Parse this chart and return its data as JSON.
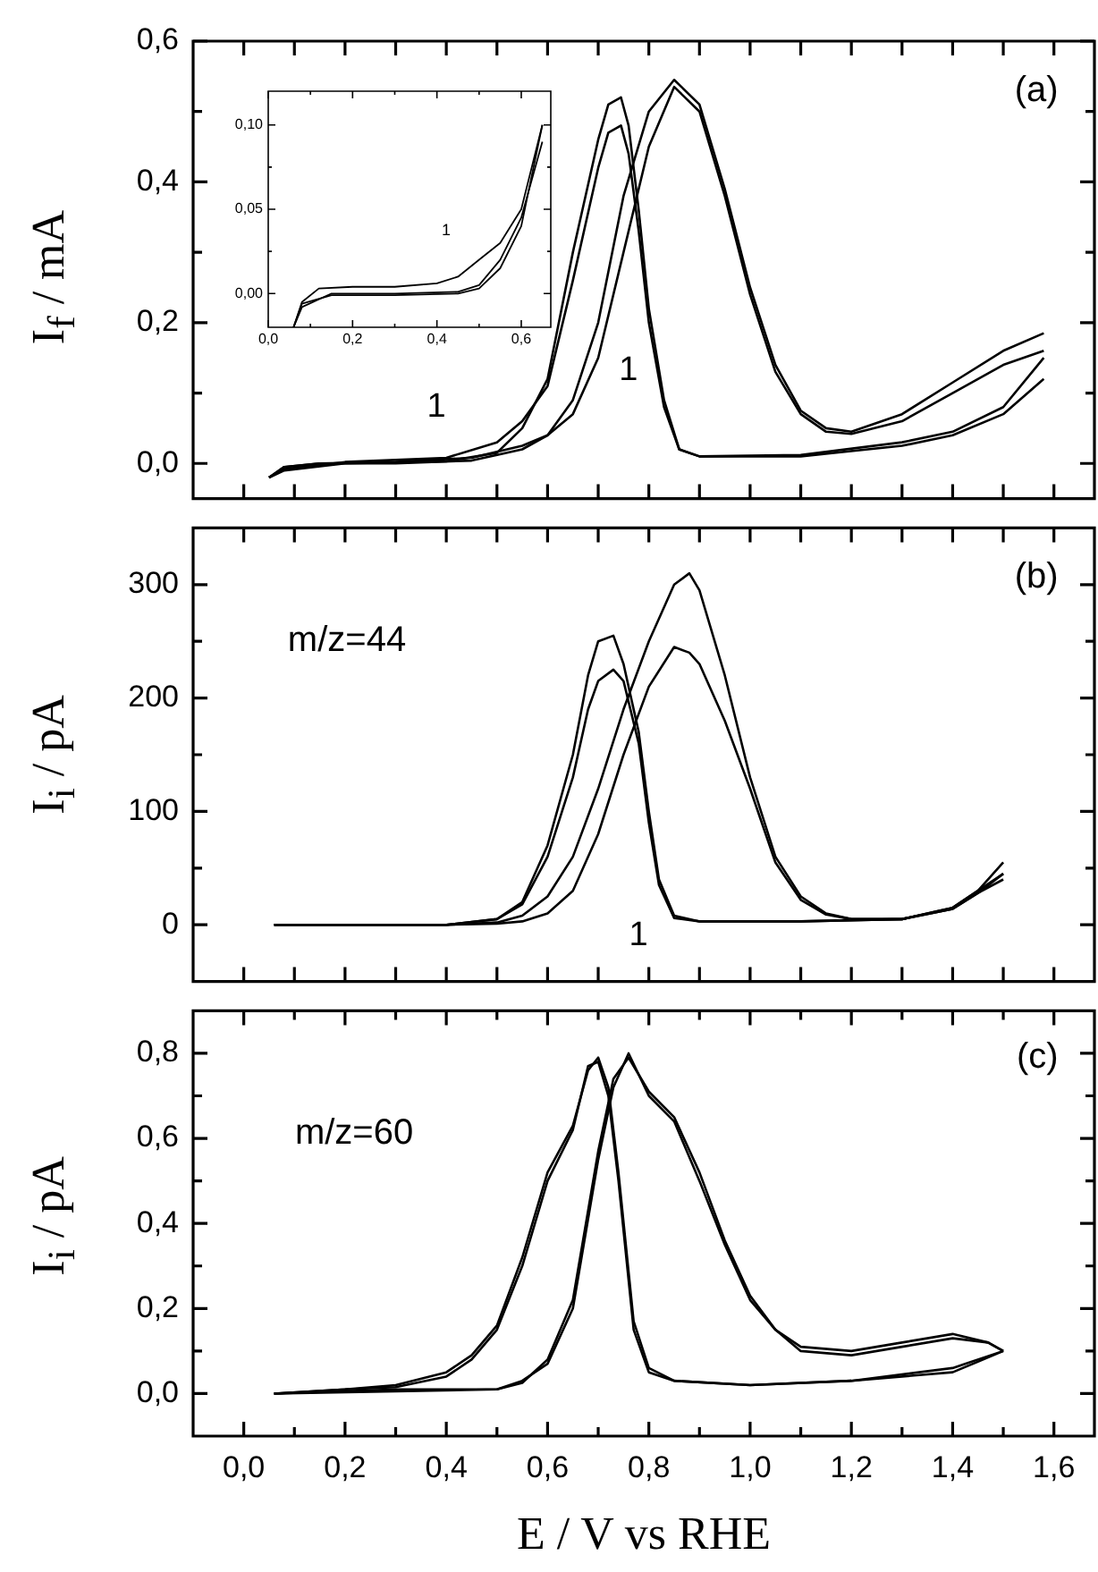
{
  "chart_data": [
    {
      "type": "line",
      "ylabel": "I$_{f}$ / mA",
      "xlim": [
        -0.1,
        1.68
      ],
      "ylim": [
        -0.05,
        0.6
      ],
      "tick_labels": "y",
      "xticks": [
        {
          "value": 0,
          "label": null
        },
        {
          "value": 0.1,
          "label": null
        },
        {
          "value": 0.2,
          "label": null
        },
        {
          "value": 0.3,
          "label": null
        },
        {
          "value": 0.4,
          "label": null
        },
        {
          "value": 0.5,
          "label": null
        },
        {
          "value": 0.6,
          "label": null
        },
        {
          "value": 0.7,
          "label": null
        },
        {
          "value": 0.8,
          "label": null
        },
        {
          "value": 0.9,
          "label": null
        },
        {
          "value": 1.0,
          "label": null
        },
        {
          "value": 1.1,
          "label": null
        },
        {
          "value": 1.2,
          "label": null
        },
        {
          "value": 1.3,
          "label": null
        },
        {
          "value": 1.4,
          "label": null
        },
        {
          "value": 1.5,
          "label": null
        },
        {
          "value": 1.6,
          "label": null
        }
      ],
      "yticks": [
        {
          "value": 0,
          "label": "0,0"
        },
        {
          "value": 0.1,
          "label": null
        },
        {
          "value": 0.2,
          "label": "0,2"
        },
        {
          "value": 0.3,
          "label": null
        },
        {
          "value": 0.4,
          "label": "0,4"
        },
        {
          "value": 0.5,
          "label": null
        },
        {
          "value": 0.6,
          "label": "0,6"
        }
      ],
      "series": [
        {
          "color": "#000000",
          "x": [
            0.05,
            0.08,
            0.15,
            0.3,
            0.45,
            0.55,
            0.6,
            0.65,
            0.7,
            0.75,
            0.8,
            0.85,
            0.9,
            0.95,
            1.0,
            1.05,
            1.1,
            1.15,
            1.2,
            1.3,
            1.4,
            1.5,
            1.58
          ],
          "values": [
            -0.02,
            -0.005,
            0.0,
            0.002,
            0.008,
            0.025,
            0.04,
            0.07,
            0.15,
            0.3,
            0.45,
            0.535,
            0.5,
            0.38,
            0.24,
            0.13,
            0.07,
            0.045,
            0.042,
            0.06,
            0.1,
            0.14,
            0.16
          ]
        },
        {
          "color": "#000000",
          "x": [
            0.05,
            0.08,
            0.2,
            0.4,
            0.5,
            0.55,
            0.6,
            0.65,
            0.7,
            0.72,
            0.745,
            0.76,
            0.78,
            0.8,
            0.83,
            0.86,
            0.9,
            1.1,
            1.3,
            1.4,
            1.5,
            1.58
          ],
          "values": [
            -0.02,
            -0.008,
            0.002,
            0.008,
            0.03,
            0.06,
            0.11,
            0.26,
            0.42,
            0.47,
            0.48,
            0.44,
            0.33,
            0.2,
            0.08,
            0.02,
            0.01,
            0.01,
            0.025,
            0.04,
            0.07,
            0.12
          ]
        },
        {
          "color": "#000000",
          "x": [
            0.05,
            0.08,
            0.15,
            0.3,
            0.45,
            0.55,
            0.6,
            0.65,
            0.7,
            0.75,
            0.8,
            0.85,
            0.9,
            0.95,
            1.0,
            1.05,
            1.1,
            1.15,
            1.2,
            1.3,
            1.4,
            1.5,
            1.58
          ],
          "values": [
            -0.02,
            -0.005,
            0.0,
            0.0,
            0.004,
            0.02,
            0.04,
            0.09,
            0.2,
            0.38,
            0.5,
            0.545,
            0.51,
            0.39,
            0.25,
            0.14,
            0.075,
            0.05,
            0.045,
            0.07,
            0.115,
            0.16,
            0.185
          ]
        },
        {
          "color": "#000000",
          "x": [
            0.05,
            0.08,
            0.2,
            0.4,
            0.5,
            0.55,
            0.6,
            0.65,
            0.7,
            0.72,
            0.745,
            0.76,
            0.78,
            0.8,
            0.83,
            0.86,
            0.9,
            1.1,
            1.3,
            1.4,
            1.5,
            1.58
          ],
          "values": [
            -0.02,
            -0.01,
            0.0,
            0.003,
            0.015,
            0.05,
            0.12,
            0.3,
            0.46,
            0.51,
            0.52,
            0.48,
            0.36,
            0.22,
            0.09,
            0.02,
            0.01,
            0.012,
            0.03,
            0.045,
            0.08,
            0.15
          ]
        }
      ],
      "annotations": [
        "(a)",
        "1",
        "1"
      ]
    },
    {
      "type": "line",
      "xlim": [
        0,
        0.67
      ],
      "ylim": [
        -0.02,
        0.12
      ],
      "xticks": [
        {
          "value": 0,
          "label": "0,0"
        },
        {
          "value": 0.1,
          "label": null
        },
        {
          "value": 0.2,
          "label": "0,2"
        },
        {
          "value": 0.3,
          "label": null
        },
        {
          "value": 0.4,
          "label": "0,4"
        },
        {
          "value": 0.5,
          "label": null
        },
        {
          "value": 0.6,
          "label": "0,6"
        }
      ],
      "yticks": [
        {
          "value": 0,
          "label": "0,00"
        },
        {
          "value": 0.025,
          "label": null
        },
        {
          "value": 0.05,
          "label": "0,05"
        },
        {
          "value": 0.075,
          "label": null
        },
        {
          "value": 0.1,
          "label": "0,10"
        }
      ],
      "series": [
        {
          "color": "#000000",
          "x": [
            0.06,
            0.08,
            0.12,
            0.2,
            0.3,
            0.4,
            0.45,
            0.5,
            0.55,
            0.6,
            0.65
          ],
          "values": [
            -0.02,
            -0.005,
            0.003,
            0.004,
            0.004,
            0.006,
            0.01,
            0.02,
            0.03,
            0.05,
            0.1
          ]
        },
        {
          "color": "#000000",
          "x": [
            0.06,
            0.08,
            0.15,
            0.3,
            0.45,
            0.5,
            0.55,
            0.6,
            0.65
          ],
          "values": [
            -0.02,
            -0.008,
            0.0,
            0.0,
            0.001,
            0.005,
            0.02,
            0.045,
            0.09
          ]
        },
        {
          "color": "#000000",
          "x": [
            0.06,
            0.08,
            0.15,
            0.3,
            0.45,
            0.5,
            0.55,
            0.6,
            0.65
          ],
          "values": [
            -0.02,
            -0.006,
            -0.001,
            -0.001,
            0.0,
            0.003,
            0.015,
            0.04,
            0.1
          ]
        }
      ],
      "annotations": [
        "1"
      ]
    },
    {
      "type": "line",
      "ylabel": "I$_{i}$ / pA",
      "xlim": [
        -0.1,
        1.68
      ],
      "ylim": [
        -50,
        350
      ],
      "tick_labels": "y",
      "xticks": [
        {
          "value": 0,
          "label": null
        },
        {
          "value": 0.1,
          "label": null
        },
        {
          "value": 0.2,
          "label": null
        },
        {
          "value": 0.3,
          "label": null
        },
        {
          "value": 0.4,
          "label": null
        },
        {
          "value": 0.5,
          "label": null
        },
        {
          "value": 0.6,
          "label": null
        },
        {
          "value": 0.7,
          "label": null
        },
        {
          "value": 0.8,
          "label": null
        },
        {
          "value": 0.9,
          "label": null
        },
        {
          "value": 1.0,
          "label": null
        },
        {
          "value": 1.1,
          "label": null
        },
        {
          "value": 1.2,
          "label": null
        },
        {
          "value": 1.3,
          "label": null
        },
        {
          "value": 1.4,
          "label": null
        },
        {
          "value": 1.5,
          "label": null
        },
        {
          "value": 1.6,
          "label": null
        }
      ],
      "yticks": [
        0,
        {
          "value": 50,
          "label": null
        },
        100,
        {
          "value": 150,
          "label": null
        },
        200,
        {
          "value": 250,
          "label": null
        },
        300
      ],
      "series": [
        {
          "color": "#000000",
          "x": [
            0.06,
            0.4,
            0.5,
            0.55,
            0.6,
            0.65,
            0.7,
            0.75,
            0.8,
            0.85,
            0.88,
            0.9,
            0.95,
            1.0,
            1.05,
            1.1,
            1.15,
            1.2,
            1.3,
            1.4,
            1.45,
            1.5
          ],
          "values": [
            0,
            0,
            1,
            3,
            10,
            30,
            80,
            150,
            210,
            245,
            240,
            230,
            180,
            120,
            55,
            22,
            9,
            5,
            5,
            14,
            28,
            45
          ]
        },
        {
          "color": "#000000",
          "x": [
            0.06,
            0.4,
            0.5,
            0.55,
            0.6,
            0.65,
            0.68,
            0.7,
            0.73,
            0.75,
            0.78,
            0.8,
            0.82,
            0.85,
            0.9,
            1.1,
            1.3,
            1.4,
            1.45,
            1.5
          ],
          "values": [
            0,
            0,
            5,
            18,
            60,
            130,
            190,
            215,
            225,
            215,
            160,
            90,
            35,
            6,
            3,
            3,
            5,
            14,
            28,
            40
          ]
        },
        {
          "color": "#000000",
          "x": [
            0.06,
            0.4,
            0.5,
            0.55,
            0.6,
            0.65,
            0.7,
            0.75,
            0.8,
            0.85,
            0.88,
            0.9,
            0.95,
            1.0,
            1.05,
            1.1,
            1.15,
            1.2,
            1.3,
            1.4,
            1.45,
            1.5
          ],
          "values": [
            0,
            0,
            2,
            8,
            25,
            60,
            120,
            190,
            250,
            300,
            310,
            295,
            220,
            130,
            60,
            25,
            10,
            5,
            5,
            15,
            30,
            55
          ]
        },
        {
          "color": "#000000",
          "x": [
            0.06,
            0.4,
            0.5,
            0.55,
            0.6,
            0.65,
            0.68,
            0.7,
            0.73,
            0.75,
            0.78,
            0.8,
            0.82,
            0.85,
            0.9,
            1.1,
            1.3,
            1.4,
            1.45,
            1.5
          ],
          "values": [
            0,
            0,
            5,
            20,
            70,
            150,
            220,
            250,
            255,
            230,
            170,
            100,
            40,
            8,
            3,
            3,
            5,
            15,
            30,
            45
          ]
        }
      ],
      "annotations": [
        "(b)",
        "m/z=44",
        "1"
      ]
    },
    {
      "type": "line",
      "ylabel": "I$_{i}$ / pA",
      "xlabel": "E / V vs RHE",
      "xlim": [
        -0.1,
        1.68
      ],
      "ylim": [
        -0.1,
        0.9
      ],
      "xticks": [
        {
          "value": 0,
          "label": "0,0"
        },
        {
          "value": 0.1,
          "label": null
        },
        {
          "value": 0.2,
          "label": "0,2"
        },
        {
          "value": 0.3,
          "label": null
        },
        {
          "value": 0.4,
          "label": "0,4"
        },
        {
          "value": 0.5,
          "label": null
        },
        {
          "value": 0.6,
          "label": "0,6"
        },
        {
          "value": 0.7,
          "label": null
        },
        {
          "value": 0.8,
          "label": "0,8"
        },
        {
          "value": 0.9,
          "label": null
        },
        {
          "value": 1.0,
          "label": "1,0"
        },
        {
          "value": 1.1,
          "label": null
        },
        {
          "value": 1.2,
          "label": "1,2"
        },
        {
          "value": 1.3,
          "label": null
        },
        {
          "value": 1.4,
          "label": "1,4"
        },
        {
          "value": 1.5,
          "label": null
        },
        {
          "value": 1.6,
          "label": "1,6"
        }
      ],
      "yticks": [
        {
          "value": 0,
          "label": "0,0"
        },
        {
          "value": 0.1,
          "label": null
        },
        {
          "value": 0.2,
          "label": "0,2"
        },
        {
          "value": 0.3,
          "label": null
        },
        {
          "value": 0.4,
          "label": "0,4"
        },
        {
          "value": 0.5,
          "label": null
        },
        {
          "value": 0.6,
          "label": "0,6"
        },
        {
          "value": 0.7,
          "label": null
        },
        {
          "value": 0.8,
          "label": "0,8"
        }
      ],
      "series": [
        {
          "color": "#000000",
          "x": [
            0.06,
            0.3,
            0.5,
            0.55,
            0.6,
            0.65,
            0.7,
            0.73,
            0.76,
            0.8,
            0.85,
            0.9,
            0.95,
            1.0,
            1.05,
            1.1,
            1.2,
            1.3,
            1.4,
            1.47,
            1.5
          ],
          "values": [
            0,
            0.005,
            0.01,
            0.03,
            0.07,
            0.2,
            0.55,
            0.72,
            0.8,
            0.7,
            0.64,
            0.5,
            0.35,
            0.22,
            0.15,
            0.1,
            0.09,
            0.11,
            0.13,
            0.12,
            0.1
          ]
        },
        {
          "color": "#000000",
          "x": [
            0.06,
            0.2,
            0.3,
            0.4,
            0.45,
            0.5,
            0.55,
            0.6,
            0.65,
            0.68,
            0.7,
            0.72,
            0.74,
            0.77,
            0.8,
            0.85,
            1.0,
            1.2,
            1.4,
            1.5
          ],
          "values": [
            0,
            0.01,
            0.015,
            0.04,
            0.08,
            0.15,
            0.3,
            0.5,
            0.62,
            0.77,
            0.78,
            0.7,
            0.5,
            0.15,
            0.05,
            0.03,
            0.02,
            0.03,
            0.05,
            0.1
          ]
        },
        {
          "color": "#000000",
          "x": [
            0.06,
            0.3,
            0.5,
            0.55,
            0.6,
            0.65,
            0.7,
            0.73,
            0.76,
            0.8,
            0.85,
            0.9,
            0.95,
            1.0,
            1.05,
            1.1,
            1.2,
            1.3,
            1.4,
            1.47,
            1.5
          ],
          "values": [
            0,
            0.01,
            0.01,
            0.025,
            0.08,
            0.22,
            0.57,
            0.74,
            0.79,
            0.71,
            0.65,
            0.52,
            0.36,
            0.23,
            0.15,
            0.11,
            0.1,
            0.12,
            0.14,
            0.12,
            0.1
          ]
        },
        {
          "color": "#000000",
          "x": [
            0.06,
            0.2,
            0.3,
            0.4,
            0.45,
            0.5,
            0.55,
            0.6,
            0.65,
            0.68,
            0.7,
            0.72,
            0.74,
            0.77,
            0.8,
            0.85,
            1.0,
            1.2,
            1.4,
            1.5
          ],
          "values": [
            0,
            0.01,
            0.02,
            0.05,
            0.09,
            0.16,
            0.32,
            0.52,
            0.63,
            0.76,
            0.79,
            0.72,
            0.52,
            0.17,
            0.06,
            0.03,
            0.02,
            0.03,
            0.06,
            0.1
          ]
        }
      ],
      "annotations": [
        "(c)",
        "m/z=60"
      ]
    }
  ]
}
